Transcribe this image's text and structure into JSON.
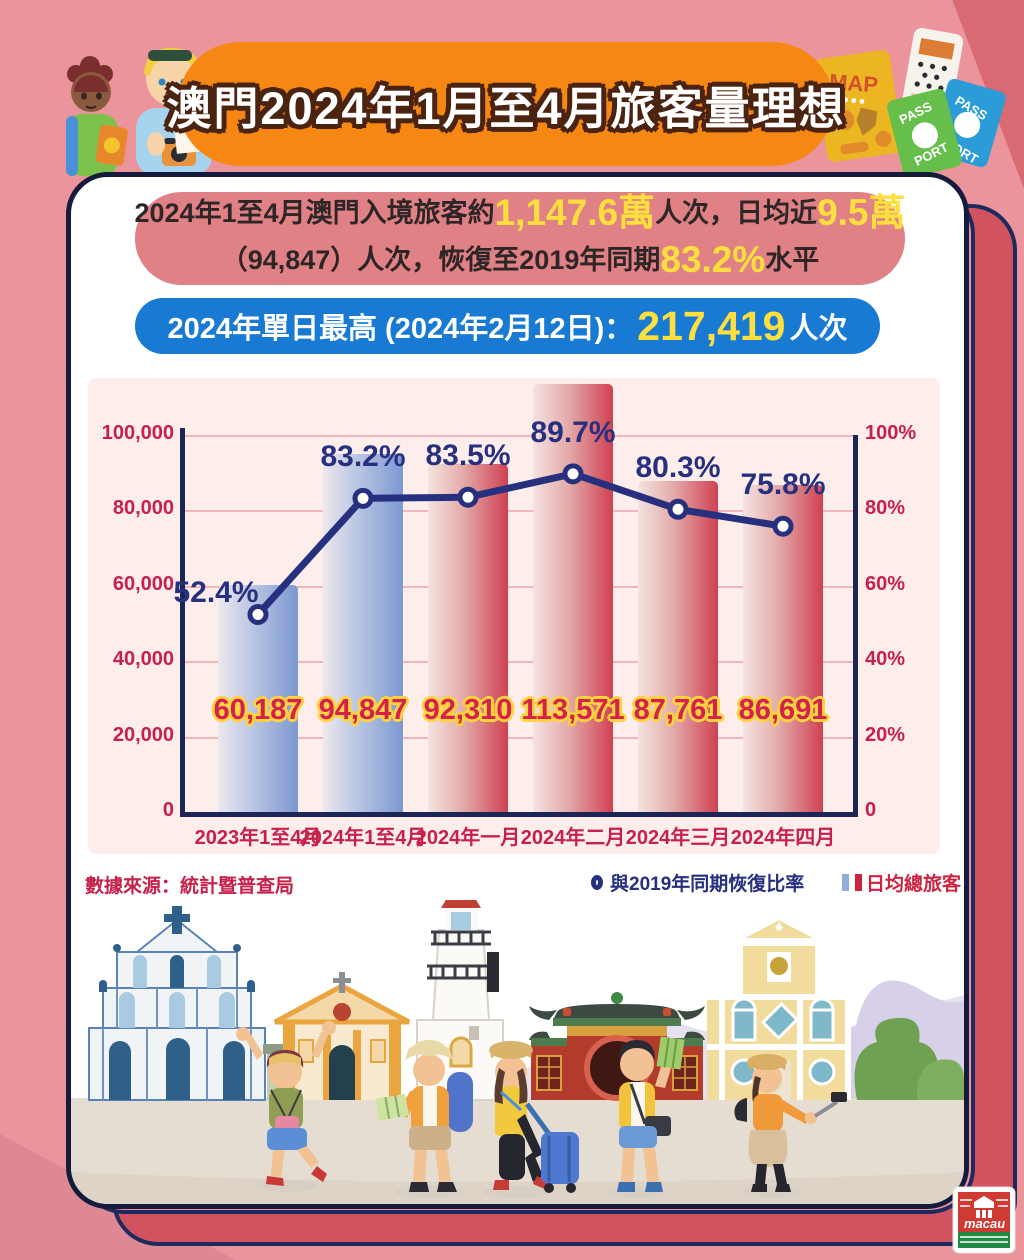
{
  "title_banner": {
    "text": "澳門2024年1月至4月旅客量理想"
  },
  "summary_banner": {
    "line1": [
      "2024年1至4月澳門入境旅客約",
      "1,147.6萬",
      "人次，日均近",
      "9.5萬"
    ],
    "line2": [
      "（94,847）人次，恢復至2019年同期",
      "83.2%",
      "水平"
    ]
  },
  "peak_banner": {
    "prefix": "2024年單日最高 (2024年2月12日)：",
    "value": "217,419",
    "suffix": "人次"
  },
  "chart_data": {
    "type": "bar+line",
    "categories": [
      "2023年1至4月",
      "2024年1至4月",
      "2024年一月",
      "2024年二月",
      "2024年三月",
      "2024年四月"
    ],
    "series": [
      {
        "name": "日均總旅客",
        "type": "bar",
        "values": [
          60187,
          94847,
          92310,
          113571,
          87761,
          86691
        ],
        "labels": [
          "60,187",
          "94,847",
          "92,310",
          "113,571",
          "87,761",
          "86,691"
        ],
        "styles": [
          "blue",
          "blue",
          "red",
          "red",
          "red",
          "red"
        ]
      },
      {
        "name": "與2019年同期恢復比率",
        "type": "line",
        "values": [
          52.4,
          83.2,
          83.5,
          89.7,
          80.3,
          75.8
        ],
        "labels": [
          "52.4%",
          "83.2%",
          "83.5%",
          "89.7%",
          "80.3%",
          "75.8%"
        ]
      }
    ],
    "left_axis": {
      "max": 100000,
      "ticks": [
        "0",
        "20,000",
        "40,000",
        "60,000",
        "80,000",
        "100,000"
      ]
    },
    "right_axis": {
      "max": 100,
      "ticks": [
        "0",
        "20%",
        "40%",
        "60%",
        "80%",
        "100%"
      ]
    },
    "grid": true,
    "legend_position": "bottom-right"
  },
  "footer": {
    "source": "數據來源：統計暨普查局",
    "legend_line": "與2019年同期恢復比率",
    "legend_bar": "日均總旅客"
  },
  "decorations": {
    "map_label": "MAP",
    "passport_top": "PASS",
    "passport_bottom": "PORT",
    "logo_text": "macau"
  },
  "colors": {
    "page_bg": "#ec949c",
    "banner_orange": "#f68712",
    "summary_pink": "#e08186",
    "peak_blue": "#187ad2",
    "highlight_yellow": "#ffdf3d",
    "axis_navy": "#1b2556",
    "line_navy": "#27307e",
    "tick_crimson": "#c6204b",
    "bar_blue": "#7b98d2",
    "bar_red": "#cf4152",
    "shadow_red": "#d25360",
    "chart_panel_bg": "#fdeeec"
  }
}
